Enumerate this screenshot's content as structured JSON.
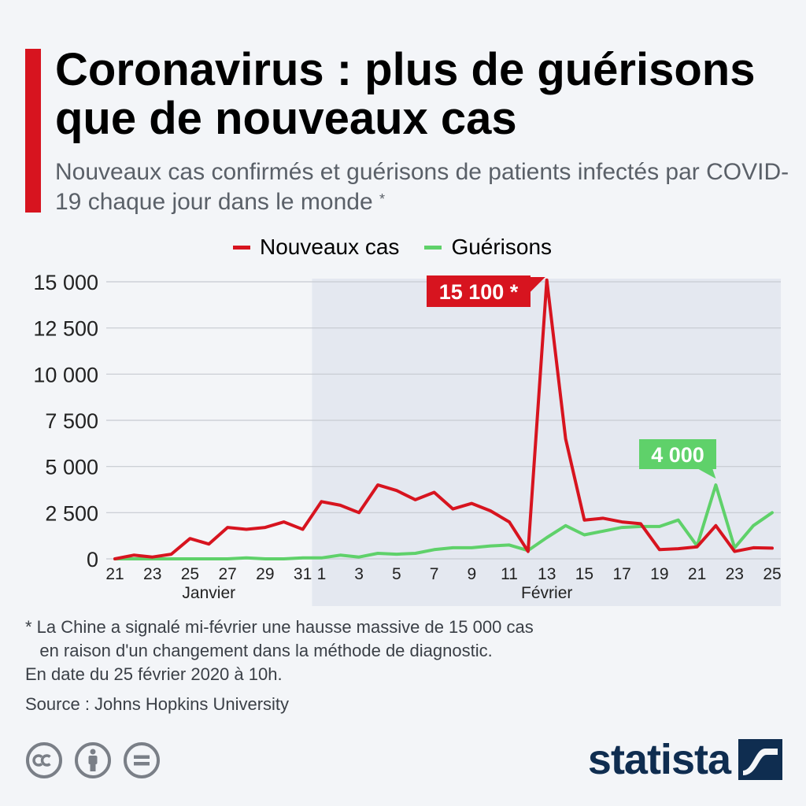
{
  "header": {
    "title": "Coronavirus : plus de guérisons que de nouveaux cas",
    "subtitle": "Nouveaux cas confirmés et guérisons de patients infectés par COVID-19 chaque jour dans le monde",
    "subtitle_mark": "*"
  },
  "colors": {
    "accent": "#d7141f",
    "red": "#d7141f",
    "green": "#5fd16a",
    "highlight_band": "#e4e8f0"
  },
  "chart_data": {
    "type": "line",
    "title": "",
    "xlabel": "",
    "ylabel": "",
    "ylim": [
      0,
      15000
    ],
    "yticks": [
      0,
      2500,
      5000,
      7500,
      10000,
      12500,
      15000
    ],
    "ytick_labels": [
      "0",
      "2 500",
      "5 000",
      "7 500",
      "10 000",
      "12 500",
      "15 000"
    ],
    "x": [
      "21 Jan",
      "22 Jan",
      "23 Jan",
      "24 Jan",
      "25 Jan",
      "26 Jan",
      "27 Jan",
      "28 Jan",
      "29 Jan",
      "30 Jan",
      "31 Jan",
      "1 Feb",
      "2 Feb",
      "3 Feb",
      "4 Feb",
      "5 Feb",
      "6 Feb",
      "7 Feb",
      "8 Feb",
      "9 Feb",
      "10 Feb",
      "11 Feb",
      "12 Feb",
      "13 Feb",
      "14 Feb",
      "15 Feb",
      "16 Feb",
      "17 Feb",
      "18 Feb",
      "19 Feb",
      "20 Feb",
      "21 Feb",
      "22 Feb",
      "23 Feb",
      "24 Feb",
      "25 Feb"
    ],
    "xtick_labels": [
      "21",
      "",
      "23",
      "",
      "25",
      "",
      "27",
      "",
      "29",
      "",
      "31",
      "1",
      "",
      "3",
      "",
      "5",
      "",
      "7",
      "",
      "9",
      "",
      "11",
      "",
      "13",
      "",
      "15",
      "",
      "17",
      "",
      "19",
      "",
      "21",
      "",
      "23",
      "",
      "25"
    ],
    "month_labels": [
      {
        "label": "Janvier",
        "at_index": 5
      },
      {
        "label": "Février",
        "at_index": 23
      }
    ],
    "highlight_from_index": 11,
    "legend_position": "top",
    "series": [
      {
        "name": "Nouveaux cas",
        "color": "#d7141f",
        "values": [
          0,
          200,
          100,
          250,
          1100,
          800,
          1700,
          1600,
          1700,
          2000,
          1600,
          3100,
          2900,
          2500,
          4000,
          3700,
          3200,
          3600,
          2700,
          3000,
          2600,
          2000,
          400,
          15100,
          6500,
          2100,
          2200,
          2000,
          1900,
          500,
          550,
          650,
          1800,
          400,
          600,
          580
        ]
      },
      {
        "name": "Guérisons",
        "color": "#5fd16a",
        "values": [
          0,
          0,
          0,
          0,
          0,
          0,
          0,
          50,
          0,
          0,
          50,
          50,
          200,
          100,
          300,
          250,
          300,
          500,
          600,
          600,
          700,
          750,
          450,
          1150,
          1800,
          1300,
          1500,
          1700,
          1750,
          1750,
          2100,
          700,
          4000,
          600,
          1800,
          2500
        ]
      }
    ],
    "annotations": [
      {
        "text": "15 100 *",
        "series": 0,
        "at_index": 23,
        "color": "#d7141f"
      },
      {
        "text": "4 000",
        "series": 1,
        "at_index": 32,
        "color": "#5fd16a"
      }
    ]
  },
  "footnote": {
    "line1": "* La Chine a signalé mi-février une hausse massive de 15 000 cas",
    "line2": "   en raison d'un changement dans la méthode de diagnostic.",
    "line3": "En date du 25 février 2020 à 10h."
  },
  "source": "Source : Johns Hopkins University",
  "brand": {
    "name": "statista"
  },
  "icons": [
    "creative-commons-icon",
    "attribution-icon",
    "no-derivatives-icon",
    "statista-logo-icon"
  ]
}
